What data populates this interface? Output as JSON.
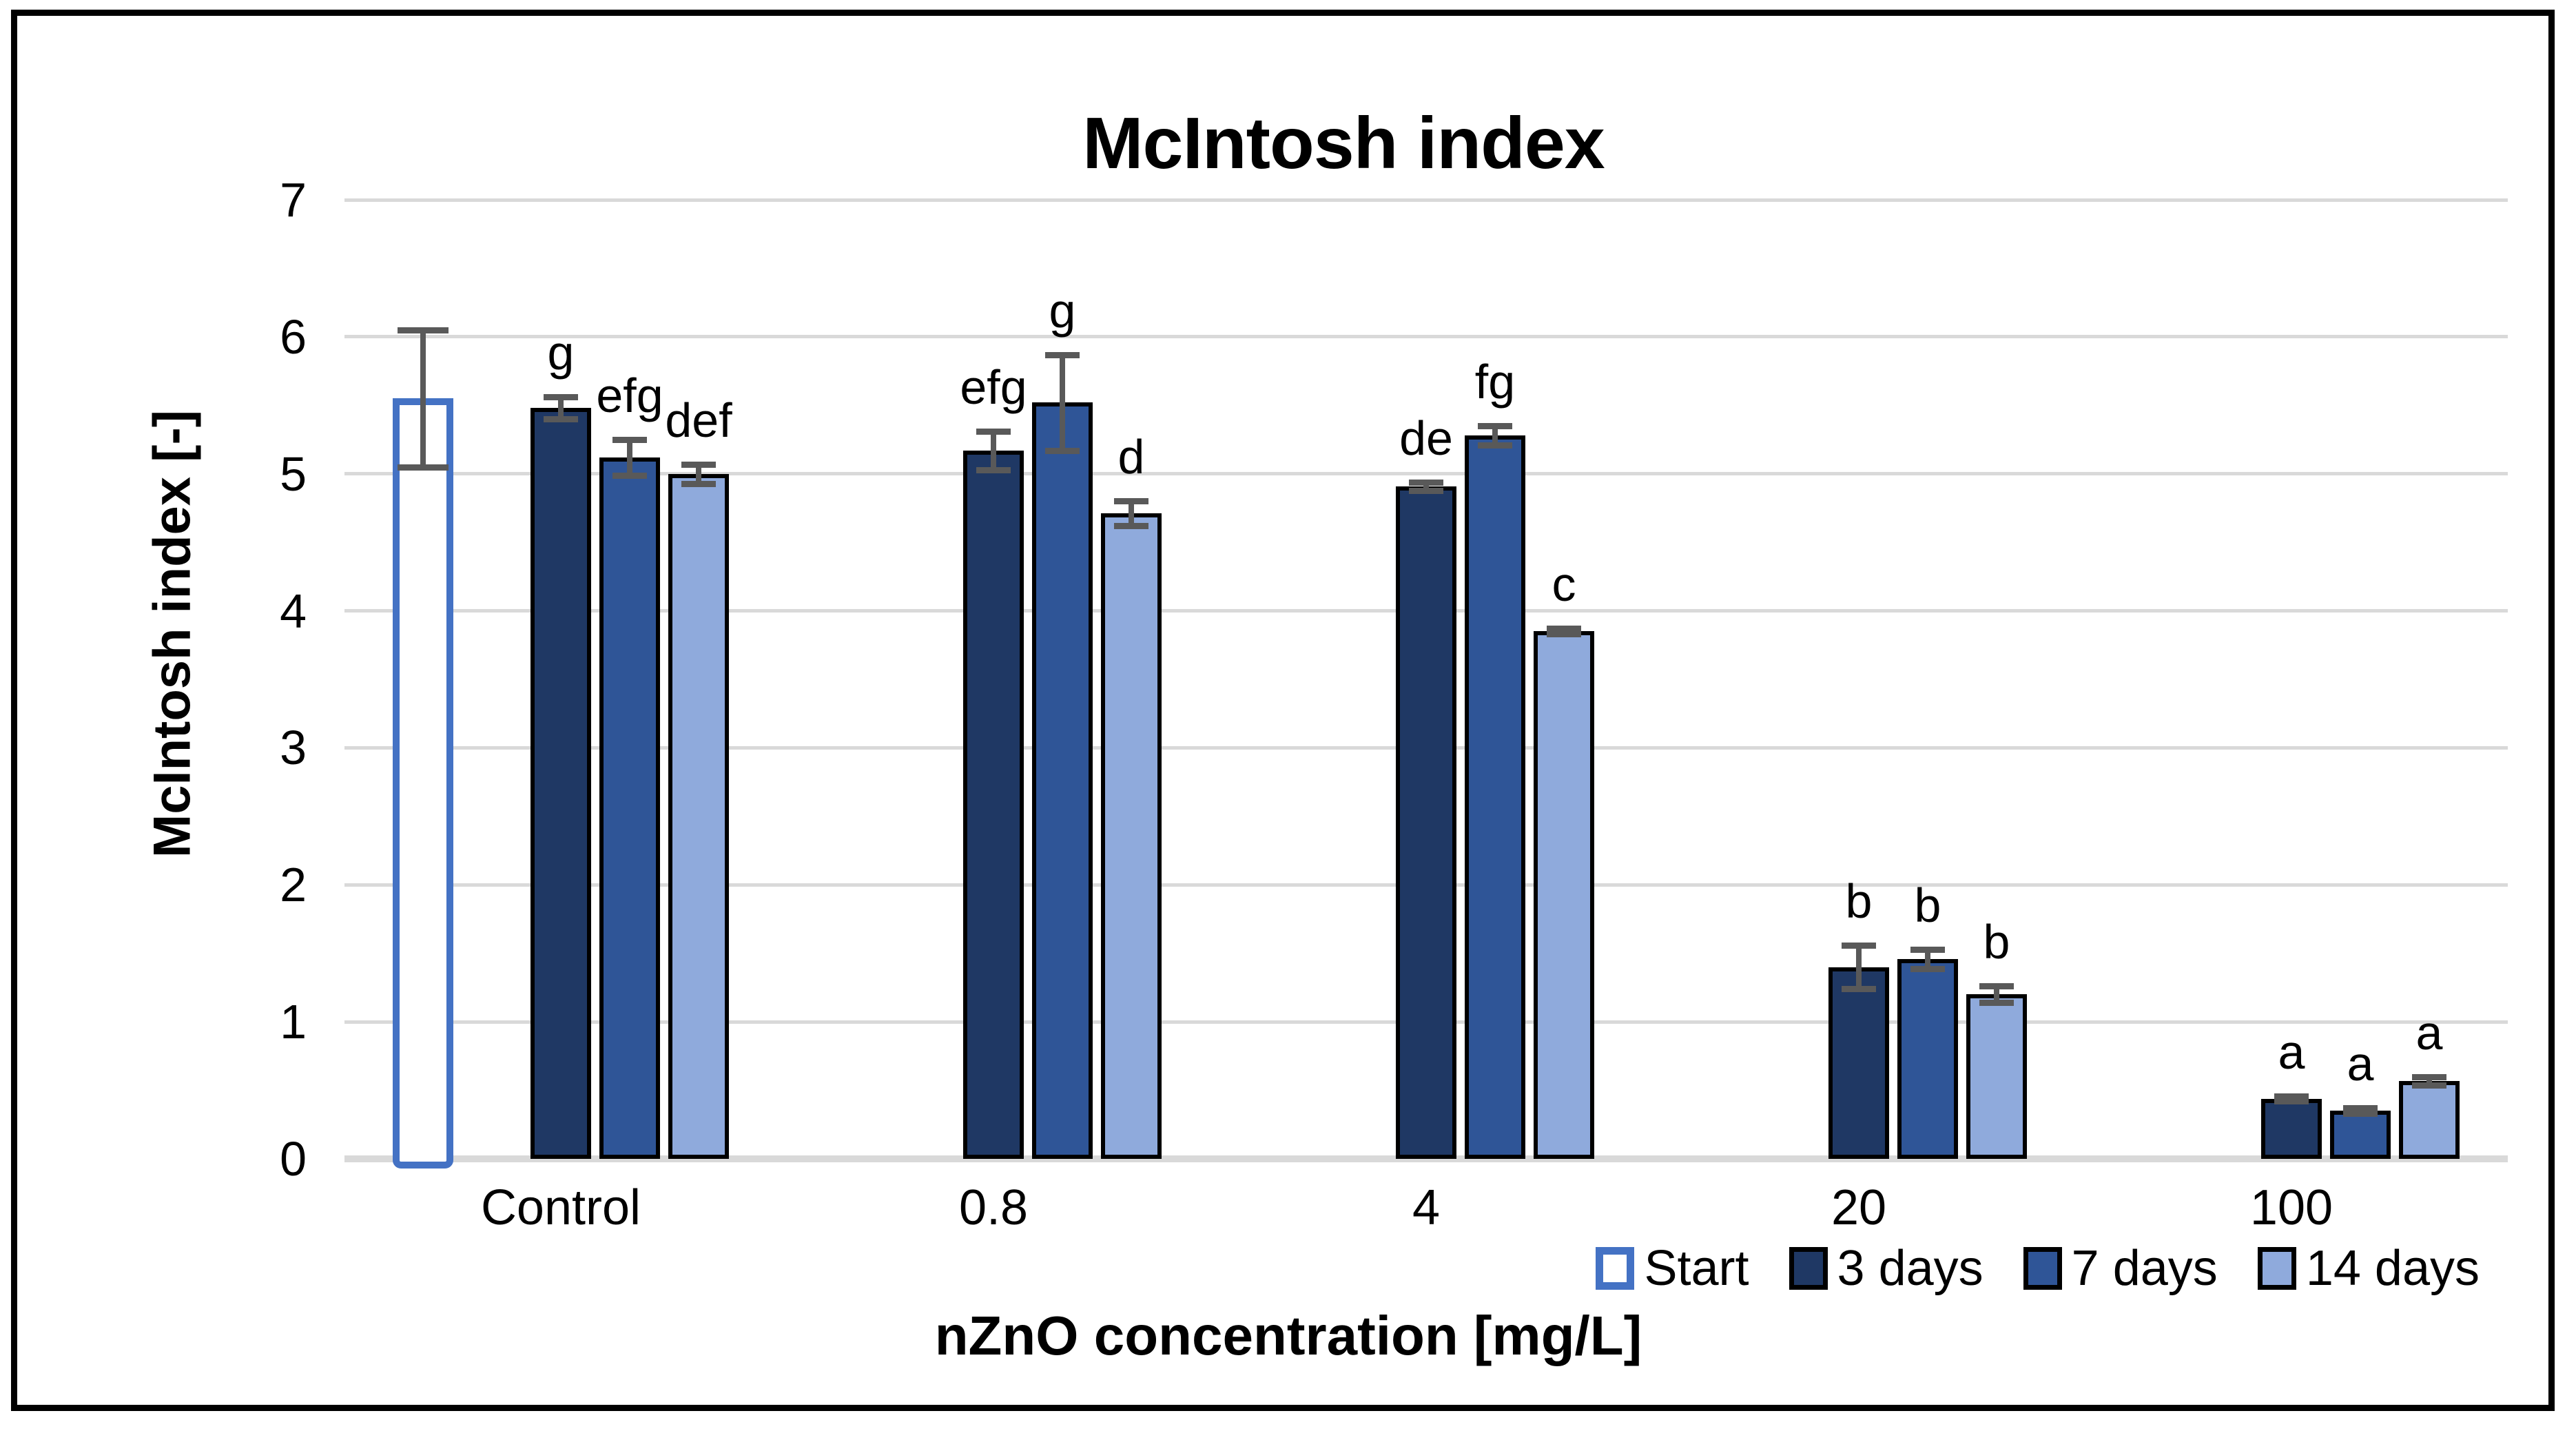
{
  "chart_data": {
    "type": "bar",
    "title": "McIntosh index",
    "xlabel": "nZnO concentration [mg/L]",
    "ylabel": "McIntosh index [-]",
    "ylim": [
      0,
      7
    ],
    "yticks": [
      0,
      1,
      2,
      3,
      4,
      5,
      6,
      7
    ],
    "grid": true,
    "legend_position": "bottom-right",
    "categories": [
      "Control",
      "0.8",
      "4",
      "20",
      "100"
    ],
    "series": [
      {
        "name": "Start",
        "fill": "#FFFFFF",
        "outline": "#4472C4",
        "values": [
          5.55,
          null,
          null,
          null,
          null
        ],
        "errors": [
          0.5,
          null,
          null,
          null,
          null
        ],
        "letters": [
          null,
          null,
          null,
          null,
          null
        ]
      },
      {
        "name": "3 days",
        "fill": "#1F3864",
        "outline": "#000000",
        "values": [
          5.48,
          5.17,
          4.91,
          1.4,
          0.44
        ],
        "errors": [
          0.08,
          0.14,
          0.03,
          0.16,
          0.02
        ],
        "letters": [
          "g",
          "efg",
          "de",
          "b",
          "a"
        ]
      },
      {
        "name": "7 days",
        "fill": "#2F5597",
        "outline": "#000000",
        "values": [
          5.12,
          5.52,
          5.28,
          1.46,
          0.35
        ],
        "errors": [
          0.13,
          0.35,
          0.07,
          0.07,
          0.02
        ],
        "letters": [
          "efg",
          "g",
          "fg",
          "b",
          "a"
        ]
      },
      {
        "name": "14 days",
        "fill": "#8FAADC",
        "outline": "#000000",
        "values": [
          5.0,
          4.71,
          3.85,
          1.2,
          0.57
        ],
        "errors": [
          0.07,
          0.09,
          0.02,
          0.06,
          0.03
        ],
        "letters": [
          "def",
          "d",
          "c",
          "b",
          "a"
        ]
      }
    ],
    "colors": {
      "gridline": "#D9D9D9",
      "error_bar": "#595959",
      "start_border": "#4472C4",
      "text": "#000000"
    }
  }
}
